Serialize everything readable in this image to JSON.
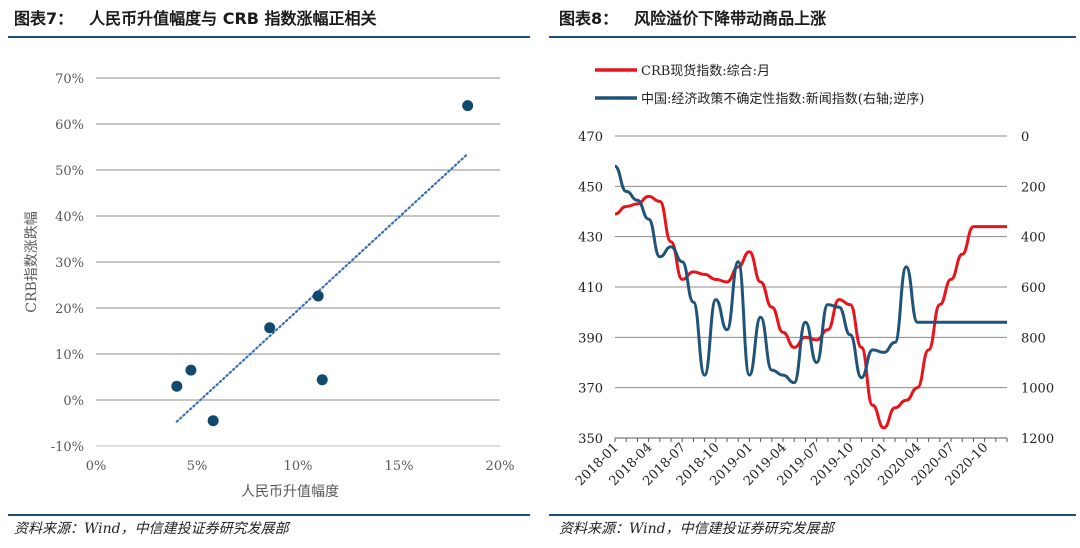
{
  "left": {
    "figure_no": "图表7：",
    "title": "人民币升值幅度与 CRB 指数涨幅正相关",
    "source": "资料来源：Wind，中信建投证券研究发展部",
    "chart_data": {
      "type": "scatter",
      "xlabel": "人民币升值幅度",
      "ylabel": "CRB指数涨跌幅",
      "xlim": [
        0,
        20
      ],
      "ylim": [
        -10,
        70
      ],
      "x_ticks": [
        "0%",
        "5%",
        "10%",
        "15%",
        "20%"
      ],
      "y_ticks": [
        "-10%",
        "0%",
        "10%",
        "20%",
        "30%",
        "40%",
        "50%",
        "60%",
        "70%"
      ],
      "grid": "horizontal",
      "points": [
        {
          "x": 4.0,
          "y": 3.0
        },
        {
          "x": 4.7,
          "y": 6.5
        },
        {
          "x": 5.8,
          "y": -4.5
        },
        {
          "x": 8.6,
          "y": 15.7
        },
        {
          "x": 11.0,
          "y": 22.6
        },
        {
          "x": 11.2,
          "y": 4.4
        },
        {
          "x": 18.4,
          "y": 64.0
        }
      ],
      "trendline": {
        "style": "dotted",
        "x": [
          4.0,
          18.4
        ],
        "y": [
          -4.7,
          53.5
        ]
      },
      "colors": {
        "points": "#124a6e",
        "trend": "#3a6fb7"
      }
    }
  },
  "right": {
    "figure_no": "图表8：",
    "title": "风险溢价下降带动商品上涨",
    "source": "资料来源：Wind，中信建投证券研究发展部",
    "chart_data": {
      "type": "line",
      "legend": "top",
      "grid": "horizontal",
      "x_ticks": [
        "2018-01",
        "2018-04",
        "2018-07",
        "2018-10",
        "2019-01",
        "2019-04",
        "2019-07",
        "2019-10",
        "2020-01",
        "2020-04",
        "2020-07",
        "2020-10"
      ],
      "ylim_left": [
        350,
        470
      ],
      "yticks_left": [
        "470",
        "450",
        "430",
        "410",
        "390",
        "370",
        "350"
      ],
      "ylim_right_reversed": [
        0,
        1200
      ],
      "yticks_right": [
        "0",
        "200",
        "400",
        "600",
        "800",
        "1000",
        "1200"
      ],
      "x": [
        "2018-01",
        "2018-02",
        "2018-03",
        "2018-04",
        "2018-05",
        "2018-06",
        "2018-07",
        "2018-08",
        "2018-09",
        "2018-10",
        "2018-11",
        "2018-12",
        "2019-01",
        "2019-02",
        "2019-03",
        "2019-04",
        "2019-05",
        "2019-06",
        "2019-07",
        "2019-08",
        "2019-09",
        "2019-10",
        "2019-11",
        "2019-12",
        "2020-01",
        "2020-02",
        "2020-03",
        "2020-04",
        "2020-05",
        "2020-06",
        "2020-07",
        "2020-08",
        "2020-09",
        "2020-10",
        "2020-11",
        "2020-12"
      ],
      "series": [
        {
          "name": "CRB现货指数:综合:月",
          "axis": "left",
          "color": "#e8141b",
          "values": [
            439,
            442,
            443,
            446,
            444,
            428,
            413,
            416,
            415,
            413,
            412,
            418,
            424,
            412,
            402,
            392,
            386,
            390,
            389,
            393,
            405,
            403,
            386,
            363,
            354,
            362,
            365,
            370,
            385,
            403,
            413,
            423,
            434,
            434,
            434,
            434
          ]
        },
        {
          "name": "中国:经济政策不确定性指数:新闻指数(右轴;逆序)",
          "axis": "right",
          "color": "#1f5378",
          "values": [
            120,
            220,
            255,
            330,
            480,
            440,
            500,
            660,
            950,
            650,
            770,
            500,
            950,
            720,
            930,
            950,
            980,
            740,
            900,
            670,
            680,
            790,
            960,
            850,
            860,
            820,
            520,
            740,
            740,
            740,
            740,
            740,
            740,
            740,
            740,
            740
          ]
        }
      ]
    }
  }
}
